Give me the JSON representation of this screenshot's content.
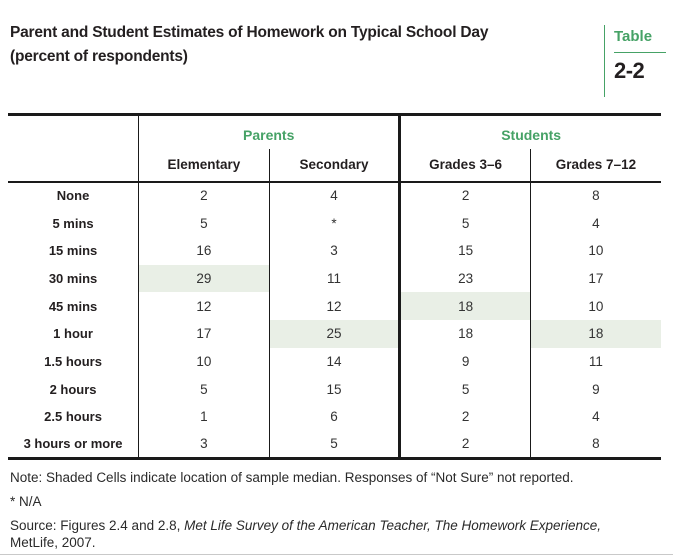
{
  "title": {
    "line1": "Parent and Student Estimates of Homework on Typical School Day",
    "line2": "(percent of respondents)"
  },
  "badge": {
    "label": "Table",
    "number": "2-2"
  },
  "colors": {
    "accent_green": "#46a266",
    "shaded_cell": "#e9efe6",
    "rule_black": "#1a1a1a"
  },
  "table": {
    "groups": [
      {
        "label": "Parents"
      },
      {
        "label": "Students"
      }
    ],
    "columns": [
      "Elementary",
      "Secondary",
      "Grades 3–6",
      "Grades 7–12"
    ],
    "rows": [
      {
        "label": "None",
        "values": [
          "2",
          "4",
          "2",
          "8"
        ],
        "shaded": [
          false,
          false,
          false,
          false
        ]
      },
      {
        "label": "5 mins",
        "values": [
          "5",
          "*",
          "5",
          "4"
        ],
        "shaded": [
          false,
          false,
          false,
          false
        ]
      },
      {
        "label": "15 mins",
        "values": [
          "16",
          "3",
          "15",
          "10"
        ],
        "shaded": [
          false,
          false,
          false,
          false
        ]
      },
      {
        "label": "30 mins",
        "values": [
          "29",
          "11",
          "23",
          "17"
        ],
        "shaded": [
          true,
          false,
          false,
          false
        ]
      },
      {
        "label": "45 mins",
        "values": [
          "12",
          "12",
          "18",
          "10"
        ],
        "shaded": [
          false,
          false,
          true,
          false
        ]
      },
      {
        "label": "1 hour",
        "values": [
          "17",
          "25",
          "18",
          "18"
        ],
        "shaded": [
          false,
          true,
          false,
          true
        ]
      },
      {
        "label": "1.5 hours",
        "values": [
          "10",
          "14",
          "9",
          "11"
        ],
        "shaded": [
          false,
          false,
          false,
          false
        ]
      },
      {
        "label": "2 hours",
        "values": [
          "5",
          "15",
          "5",
          "9"
        ],
        "shaded": [
          false,
          false,
          false,
          false
        ]
      },
      {
        "label": "2.5 hours",
        "values": [
          "1",
          "6",
          "2",
          "4"
        ],
        "shaded": [
          false,
          false,
          false,
          false
        ]
      },
      {
        "label": "3 hours or more",
        "values": [
          "3",
          "5",
          "2",
          "8"
        ],
        "shaded": [
          false,
          false,
          false,
          false
        ]
      }
    ]
  },
  "footnotes": {
    "note": "Note: Shaded Cells indicate location of sample median. Responses of “Not Sure” not reported.",
    "asterisk": "* N/A",
    "source_prefix": "Source: Figures 2.4 and 2.8, ",
    "source_italic": "Met Life Survey of the American Teacher, The Homework Experience,",
    "source_suffix": "MetLife, 2007."
  }
}
